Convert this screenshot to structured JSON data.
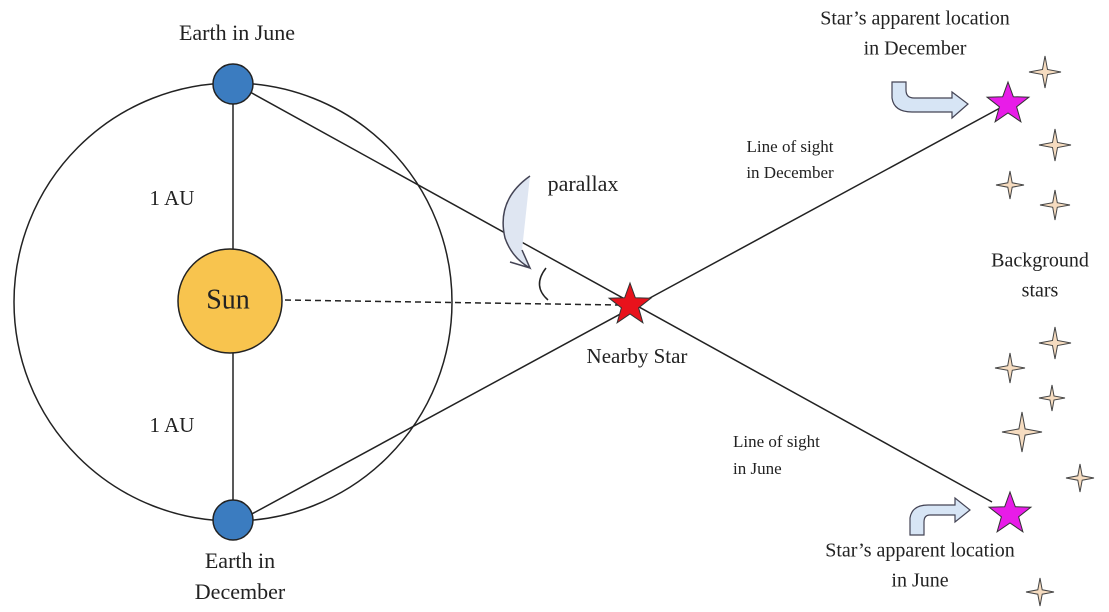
{
  "labels": {
    "earth_june": "Earth in June",
    "au_top": "1 AU",
    "sun": "Sun",
    "au_bottom": "1 AU",
    "earth_december": [
      "Earth in",
      "December"
    ],
    "parallax": "parallax",
    "sight_december": [
      "Line of sight",
      "in December"
    ],
    "nearby_star": "Nearby Star",
    "sight_june": [
      "Line of sight",
      "in June"
    ],
    "apparent_december": [
      "Star’s apparent location",
      "in December"
    ],
    "background": [
      "Background",
      "stars"
    ],
    "apparent_june": [
      "Star’s apparent location",
      "in June"
    ]
  }
}
